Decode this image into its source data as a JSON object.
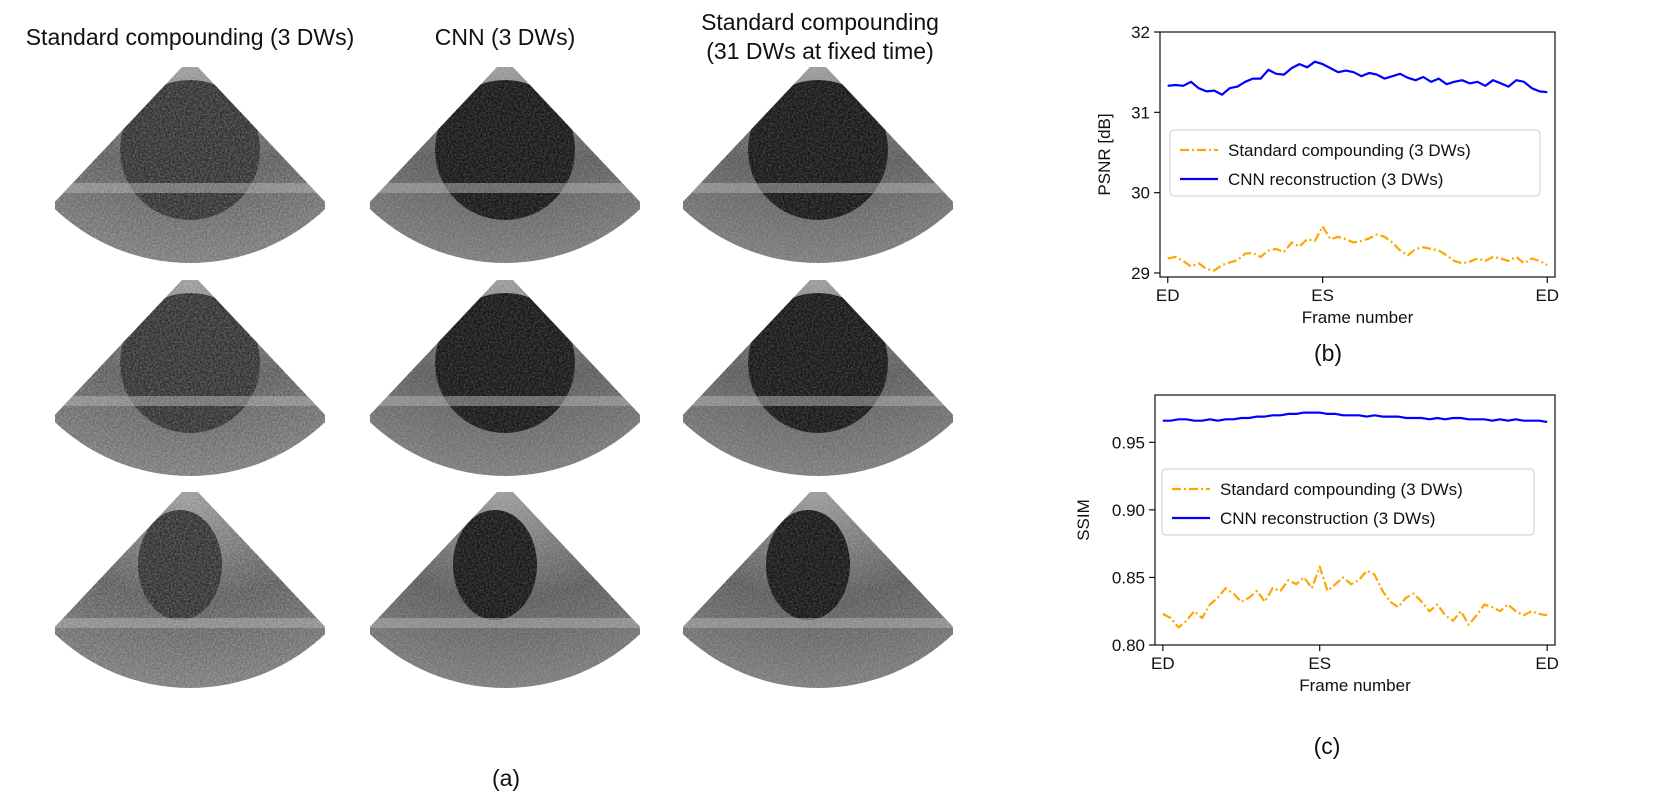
{
  "figure": {
    "columns": [
      {
        "title_lines": [
          "Standard compounding (3 DWs)"
        ]
      },
      {
        "title_lines": [
          "CNN  (3 DWs)"
        ]
      },
      {
        "title_lines": [
          "Standard compounding",
          "(31 DWs at fixed time)"
        ]
      }
    ],
    "captions": {
      "a": "(a)",
      "b": "(b)",
      "c": "(c)"
    }
  },
  "colors": {
    "orange": "#FFA500",
    "blue": "#0000FF"
  },
  "chart_data": [
    {
      "type": "line",
      "ylabel": "PSNR [dB]",
      "xlabel": "Frame number",
      "ylim": [
        28.95,
        32
      ],
      "yticks": [
        29,
        30,
        31,
        32
      ],
      "xticks": [
        {
          "x": 0,
          "label": "ED"
        },
        {
          "x": 20,
          "label": "ES"
        },
        {
          "x": 49,
          "label": "ED"
        }
      ],
      "legend": "center-left",
      "grid": false,
      "series": [
        {
          "name": "Standard compounding (3 DWs)",
          "color": "#FFA500",
          "style": "dashdot",
          "values": [
            29.18,
            29.2,
            29.15,
            29.08,
            29.12,
            29.05,
            29.03,
            29.1,
            29.13,
            29.16,
            29.24,
            29.25,
            29.2,
            29.28,
            29.3,
            29.26,
            29.38,
            29.33,
            29.42,
            29.4,
            29.58,
            29.42,
            29.45,
            29.42,
            29.38,
            29.4,
            29.43,
            29.48,
            29.45,
            29.38,
            29.28,
            29.22,
            29.3,
            29.32,
            29.3,
            29.28,
            29.22,
            29.15,
            29.12,
            29.14,
            29.18,
            29.15,
            29.2,
            29.18,
            29.15,
            29.2,
            29.12,
            29.18,
            29.15,
            29.1
          ]
        },
        {
          "name": "CNN reconstruction (3 DWs)",
          "color": "#0000FF",
          "style": "solid",
          "values": [
            31.33,
            31.34,
            31.33,
            31.38,
            31.3,
            31.26,
            31.27,
            31.22,
            31.3,
            31.32,
            31.38,
            31.42,
            31.42,
            31.53,
            31.48,
            31.47,
            31.55,
            31.6,
            31.56,
            31.63,
            31.6,
            31.55,
            31.5,
            31.52,
            31.5,
            31.45,
            31.49,
            31.47,
            31.42,
            31.45,
            31.48,
            31.43,
            31.4,
            31.44,
            31.38,
            31.42,
            31.35,
            31.38,
            31.4,
            31.36,
            31.38,
            31.33,
            31.4,
            31.36,
            31.32,
            31.4,
            31.38,
            31.3,
            31.26,
            31.25
          ]
        }
      ]
    },
    {
      "type": "line",
      "ylabel": "SSIM",
      "xlabel": "Frame number",
      "ylim": [
        0.8,
        0.985
      ],
      "yticks": [
        0.8,
        0.85,
        0.9,
        0.95
      ],
      "ytick_labels": [
        "0.80",
        "0.85",
        "0.90",
        "0.95"
      ],
      "xticks": [
        {
          "x": 0,
          "label": "ED"
        },
        {
          "x": 20,
          "label": "ES"
        },
        {
          "x": 49,
          "label": "ED"
        }
      ],
      "legend": "center-left",
      "grid": false,
      "series": [
        {
          "name": "Standard compounding (3 DWs)",
          "color": "#FFA500",
          "style": "dashdot",
          "values": [
            0.823,
            0.82,
            0.813,
            0.818,
            0.825,
            0.82,
            0.83,
            0.835,
            0.842,
            0.838,
            0.832,
            0.835,
            0.84,
            0.832,
            0.842,
            0.84,
            0.848,
            0.845,
            0.85,
            0.842,
            0.858,
            0.84,
            0.845,
            0.85,
            0.845,
            0.848,
            0.855,
            0.852,
            0.84,
            0.832,
            0.828,
            0.835,
            0.838,
            0.832,
            0.825,
            0.83,
            0.822,
            0.818,
            0.825,
            0.815,
            0.822,
            0.83,
            0.828,
            0.825,
            0.83,
            0.825,
            0.822,
            0.825,
            0.823,
            0.822
          ]
        },
        {
          "name": "CNN reconstruction (3 DWs)",
          "color": "#0000FF",
          "style": "solid",
          "values": [
            0.966,
            0.966,
            0.967,
            0.967,
            0.966,
            0.966,
            0.967,
            0.966,
            0.967,
            0.967,
            0.968,
            0.968,
            0.969,
            0.969,
            0.97,
            0.97,
            0.971,
            0.971,
            0.972,
            0.972,
            0.972,
            0.971,
            0.971,
            0.97,
            0.97,
            0.97,
            0.969,
            0.97,
            0.969,
            0.969,
            0.969,
            0.968,
            0.968,
            0.968,
            0.967,
            0.968,
            0.967,
            0.968,
            0.968,
            0.967,
            0.967,
            0.967,
            0.966,
            0.967,
            0.966,
            0.967,
            0.966,
            0.966,
            0.966,
            0.965
          ]
        }
      ]
    }
  ]
}
